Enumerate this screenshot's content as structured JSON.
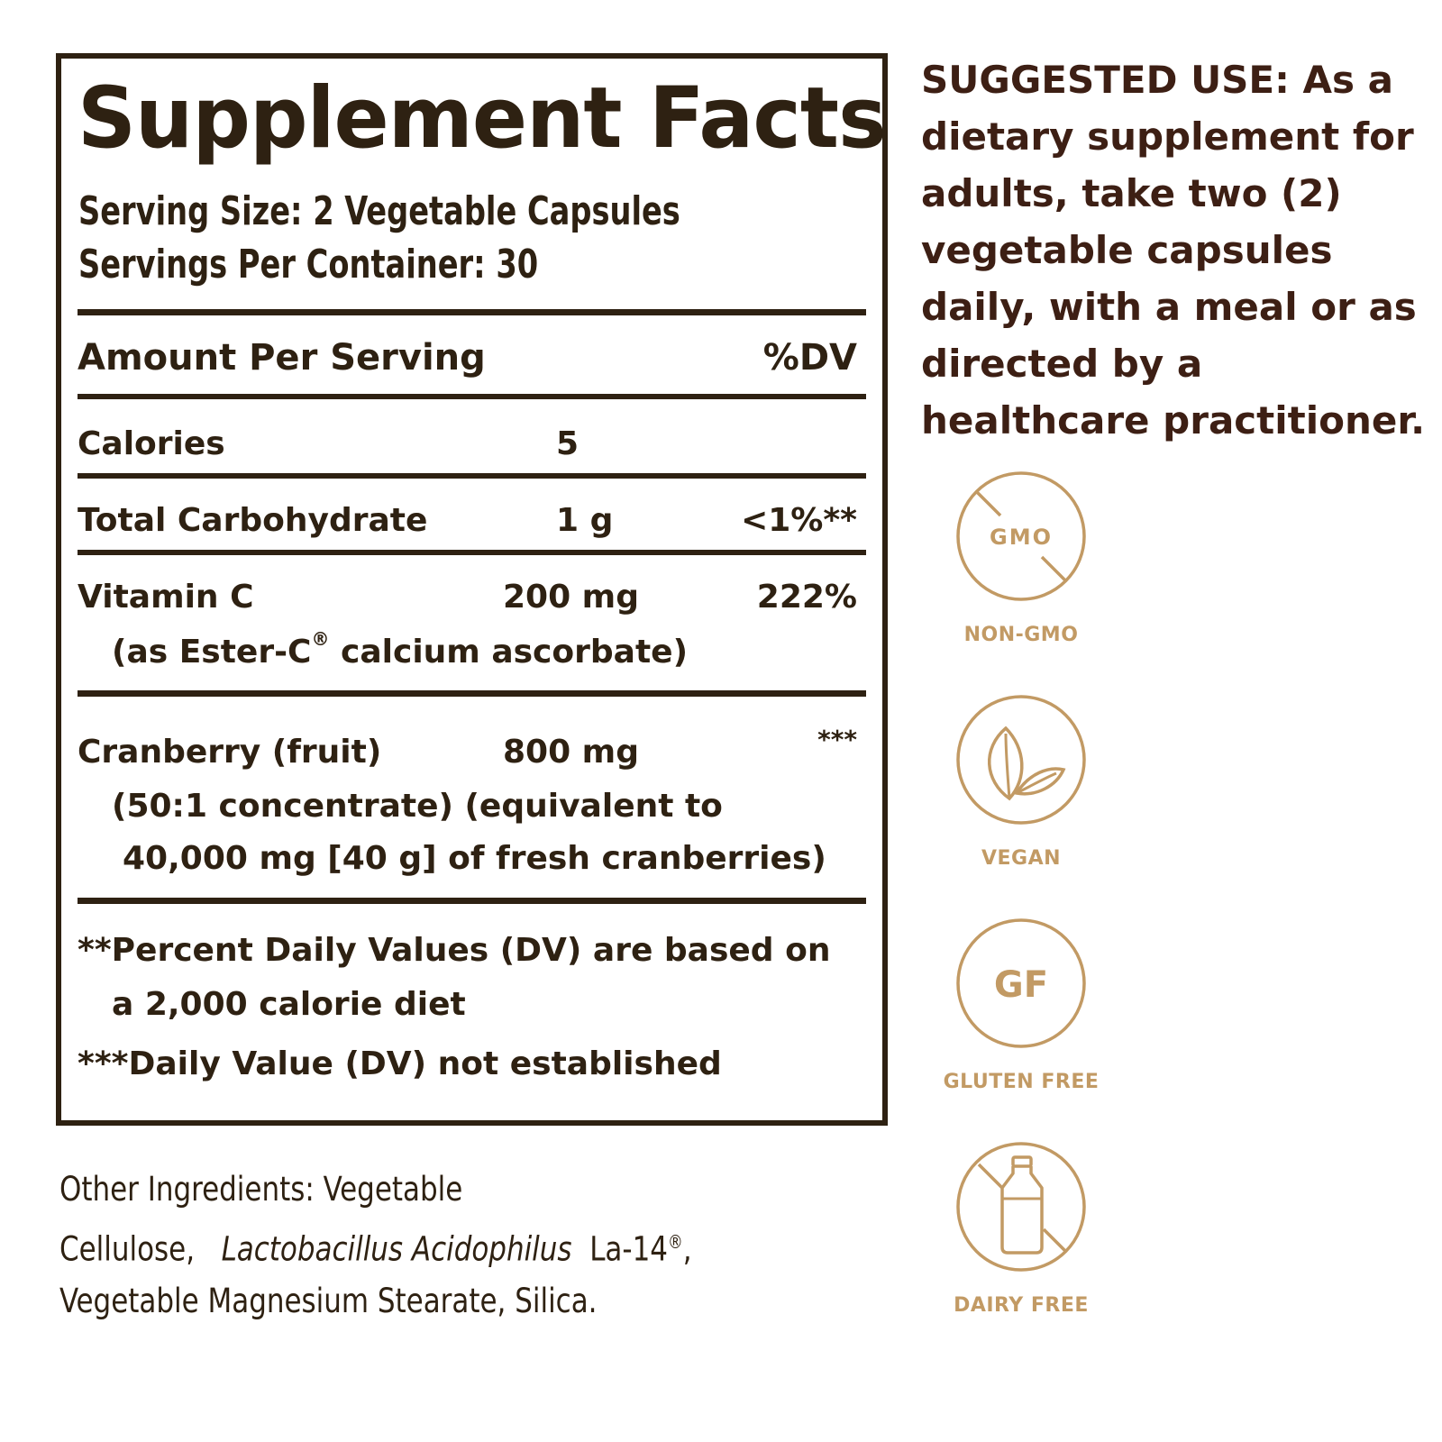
{
  "facts": {
    "title": "Supplement Facts",
    "serving_size": "Serving Size: 2 Vegetable Capsules",
    "servings_per_container": "Servings Per Container: 30",
    "header": {
      "amount": "Amount Per Serving",
      "dv": "%DV"
    },
    "rows": [
      {
        "name": "Calories",
        "amount": "5",
        "dv": ""
      },
      {
        "name": "Total Carbohydrate",
        "amount": "1 g",
        "dv": "<1%**"
      },
      {
        "name": "Vitamin C",
        "amount": "200 mg",
        "dv": "222%",
        "sub": "(as Ester-C",
        "sub_mark": "®",
        "sub_rest": " calcium ascorbate)"
      },
      {
        "name": "Cranberry (fruit)",
        "amount": "800 mg",
        "dv": "***",
        "sub1": "(50:1 concentrate) (equivalent to",
        "sub2": "40,000 mg [40 g] of fresh cranberries)"
      }
    ],
    "footnote1_a": "**Percent Daily Values (DV) are based on",
    "footnote1_b": "a 2,000 calorie diet",
    "footnote2": "***Daily Value (DV) not established"
  },
  "other_ingredients": {
    "prefix": "Other Ingredients: Vegetable Cellulose,",
    "italic": "Lactobacillus Acidophilus",
    "middle": "La-14",
    "mark": "®",
    "suffix": ", Vegetable Magnesium Stearate, Silica."
  },
  "suggested_use": "SUGGESTED USE: As a dietary supplement for adults, take two (2) vegetable capsules daily, with a meal or as directed by a healthcare practitioner.",
  "badges": [
    {
      "icon": "non-gmo-icon",
      "text": "GMO",
      "label": "NON-GMO"
    },
    {
      "icon": "vegan-leaf-icon",
      "label": "VEGAN"
    },
    {
      "icon": "gluten-free-icon",
      "text": "GF",
      "label": "GLUTEN FREE"
    },
    {
      "icon": "dairy-free-bottle-icon",
      "label": "DAIRY FREE"
    }
  ],
  "colors": {
    "ink": "#2e2112",
    "gold": "#c29a64",
    "suggested": "#3d1f14"
  }
}
